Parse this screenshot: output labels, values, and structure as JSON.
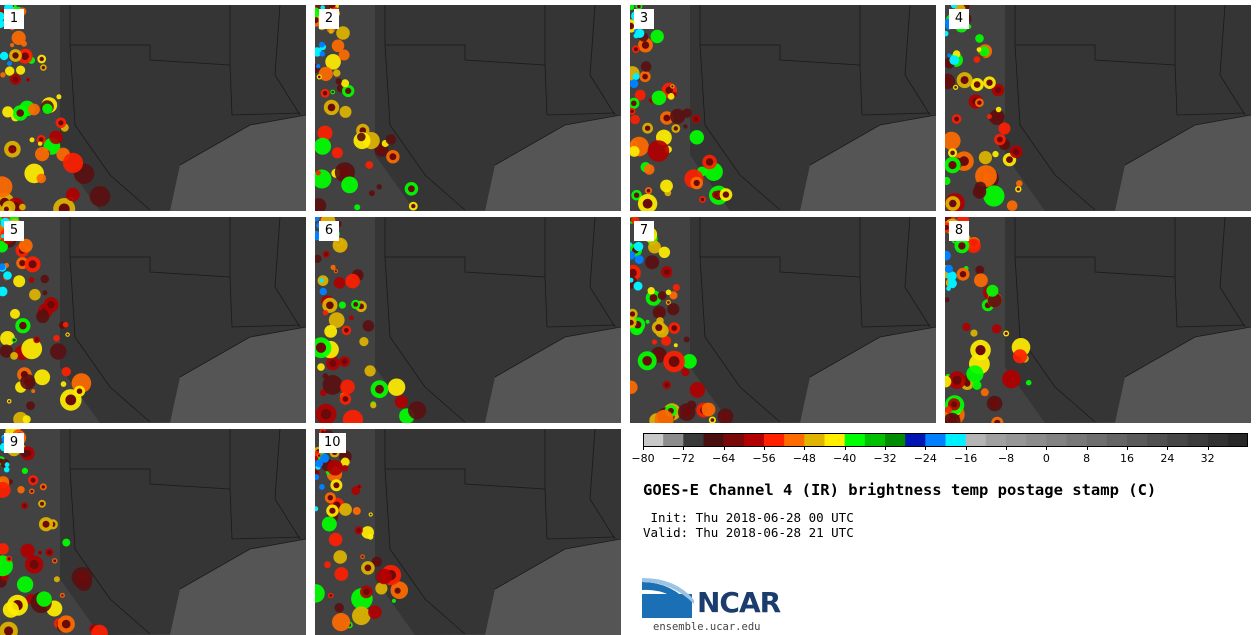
{
  "panels": [
    {
      "label": "1"
    },
    {
      "label": "2"
    },
    {
      "label": "3"
    },
    {
      "label": "4"
    },
    {
      "label": "5"
    },
    {
      "label": "6"
    },
    {
      "label": "7"
    },
    {
      "label": "8"
    },
    {
      "label": "9"
    },
    {
      "label": "10"
    }
  ],
  "colorbar": {
    "ticks": [
      "−80",
      "−72",
      "−64",
      "−56",
      "−48",
      "−40",
      "−32",
      "−24",
      "−16",
      "−8",
      "0",
      "8",
      "16",
      "24",
      "32"
    ],
    "range": [
      -80,
      40
    ],
    "colors": [
      "#c8c8c8",
      "#8c8c8c",
      "#3a3a3a",
      "#4a1010",
      "#7a0a0a",
      "#b00000",
      "#ff2000",
      "#ff6a00",
      "#e0b400",
      "#ffee00",
      "#00ff00",
      "#00c000",
      "#008c00",
      "#0014b4",
      "#0080ff",
      "#00f0ff",
      "#b4b4b4",
      "#a0a0a0",
      "#969696",
      "#8c8c8c",
      "#828282",
      "#787878",
      "#6e6e6e",
      "#646464",
      "#5a5a5a",
      "#505050",
      "#464646",
      "#3c3c3c",
      "#323232",
      "#282828"
    ]
  },
  "title": "GOES-E Channel 4 (IR) brightness temp postage stamp (C)",
  "init_line": " Init: Thu 2018-06-28 00 UTC",
  "valid_line": "Valid: Thu 2018-06-28 21 UTC",
  "logo": {
    "text": "NCAR",
    "url": "ensemble.ucar.edu"
  }
}
